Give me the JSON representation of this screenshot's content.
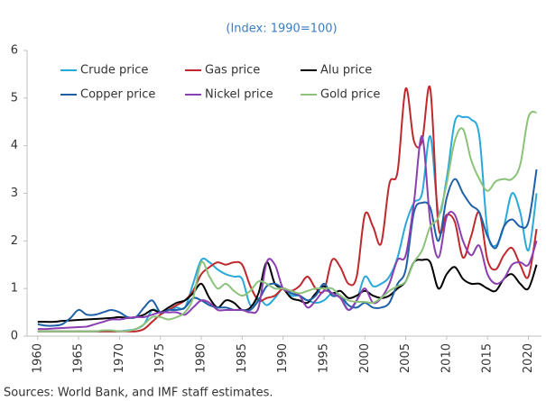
{
  "chart_data": {
    "type": "line",
    "title": "(Index: 1990=100)",
    "source": "Sources: World Bank, and IMF staff estimates.",
    "x": [
      1960,
      1961,
      1962,
      1963,
      1964,
      1965,
      1966,
      1967,
      1968,
      1969,
      1970,
      1971,
      1972,
      1973,
      1974,
      1975,
      1976,
      1977,
      1978,
      1979,
      1980,
      1981,
      1982,
      1983,
      1984,
      1985,
      1986,
      1987,
      1988,
      1989,
      1990,
      1991,
      1992,
      1993,
      1994,
      1995,
      1996,
      1997,
      1998,
      1999,
      2000,
      2001,
      2002,
      2003,
      2004,
      2005,
      2006,
      2007,
      2008,
      2009,
      2010,
      2011,
      2012,
      2013,
      2014,
      2015,
      2016,
      2017,
      2018,
      2019,
      2020,
      2021
    ],
    "xlim": [
      1958.7,
      2021.6
    ],
    "xticks": [
      1960,
      1965,
      1970,
      1975,
      1980,
      1985,
      1990,
      1995,
      2000,
      2005,
      2010,
      2015,
      2020
    ],
    "ylim": [
      0,
      6
    ],
    "yticks": [
      0,
      1,
      2,
      3,
      4,
      5,
      6
    ],
    "series": [
      {
        "name": "Crude price",
        "color": "#29a9da",
        "values": [
          0.1,
          0.1,
          0.1,
          0.1,
          0.1,
          0.1,
          0.1,
          0.1,
          0.1,
          0.1,
          0.1,
          0.12,
          0.15,
          0.25,
          0.55,
          0.5,
          0.55,
          0.6,
          0.6,
          1.1,
          1.6,
          1.55,
          1.4,
          1.3,
          1.25,
          1.2,
          0.65,
          0.8,
          0.65,
          0.8,
          1.0,
          0.85,
          0.85,
          0.75,
          0.7,
          0.75,
          0.9,
          0.85,
          0.55,
          0.75,
          1.25,
          1.05,
          1.1,
          1.25,
          1.65,
          2.35,
          2.8,
          3.0,
          4.2,
          2.6,
          3.3,
          4.5,
          4.6,
          4.55,
          4.2,
          2.2,
          1.9,
          2.3,
          3.0,
          2.6,
          1.8,
          3.0
        ]
      },
      {
        "name": "Gas price",
        "color": "#c0282d",
        "values": [
          0.1,
          0.1,
          0.1,
          0.1,
          0.1,
          0.1,
          0.1,
          0.1,
          0.1,
          0.1,
          0.1,
          0.1,
          0.1,
          0.15,
          0.3,
          0.45,
          0.55,
          0.65,
          0.75,
          0.95,
          1.3,
          1.45,
          1.55,
          1.5,
          1.55,
          1.5,
          1.05,
          0.75,
          0.8,
          0.85,
          1.0,
          0.95,
          1.05,
          1.25,
          1.0,
          0.95,
          1.6,
          1.45,
          1.1,
          1.25,
          2.55,
          2.3,
          1.95,
          3.2,
          3.45,
          5.2,
          4.1,
          4.1,
          5.2,
          2.3,
          2.55,
          2.4,
          1.65,
          2.1,
          2.6,
          1.6,
          1.4,
          1.7,
          1.85,
          1.5,
          1.25,
          2.25
        ]
      },
      {
        "name": "Alu price",
        "color": "#000000",
        "values": [
          0.3,
          0.3,
          0.3,
          0.32,
          0.33,
          0.34,
          0.35,
          0.36,
          0.37,
          0.38,
          0.4,
          0.38,
          0.4,
          0.45,
          0.55,
          0.5,
          0.6,
          0.7,
          0.75,
          0.9,
          1.1,
          0.8,
          0.6,
          0.75,
          0.7,
          0.55,
          0.6,
          0.9,
          1.55,
          1.1,
          1.0,
          0.8,
          0.75,
          0.7,
          0.9,
          1.05,
          0.9,
          0.95,
          0.8,
          0.85,
          0.95,
          0.85,
          0.8,
          0.85,
          1.0,
          1.15,
          1.55,
          1.6,
          1.55,
          1.0,
          1.3,
          1.45,
          1.2,
          1.1,
          1.1,
          1.0,
          0.95,
          1.2,
          1.3,
          1.1,
          1.0,
          1.5
        ]
      },
      {
        "name": "Copper price",
        "color": "#1f5fa6",
        "values": [
          0.25,
          0.22,
          0.22,
          0.25,
          0.38,
          0.55,
          0.45,
          0.45,
          0.5,
          0.55,
          0.5,
          0.4,
          0.4,
          0.6,
          0.75,
          0.5,
          0.55,
          0.55,
          0.6,
          0.8,
          0.75,
          0.65,
          0.6,
          0.6,
          0.55,
          0.55,
          0.55,
          0.75,
          1.05,
          1.1,
          1.0,
          0.9,
          0.85,
          0.75,
          0.85,
          1.1,
          0.85,
          0.85,
          0.65,
          0.6,
          0.7,
          0.6,
          0.6,
          0.7,
          1.1,
          1.4,
          2.6,
          2.8,
          2.7,
          2.0,
          2.9,
          3.3,
          3.0,
          2.75,
          2.6,
          2.1,
          1.85,
          2.3,
          2.45,
          2.3,
          2.4,
          3.5
        ]
      },
      {
        "name": "Nickel price",
        "color": "#8b3fb0",
        "values": [
          0.15,
          0.15,
          0.16,
          0.17,
          0.18,
          0.19,
          0.2,
          0.25,
          0.3,
          0.35,
          0.35,
          0.38,
          0.4,
          0.4,
          0.45,
          0.5,
          0.5,
          0.5,
          0.45,
          0.6,
          0.75,
          0.7,
          0.55,
          0.55,
          0.55,
          0.55,
          0.5,
          0.6,
          1.55,
          1.5,
          1.0,
          0.95,
          0.85,
          0.6,
          0.75,
          0.95,
          0.9,
          0.8,
          0.55,
          0.75,
          1.0,
          0.7,
          0.8,
          1.1,
          1.6,
          1.7,
          2.8,
          4.2,
          2.4,
          1.65,
          2.5,
          2.55,
          2.0,
          1.7,
          1.9,
          1.3,
          1.1,
          1.2,
          1.5,
          1.55,
          1.5,
          2.0
        ]
      },
      {
        "name": "Gold price",
        "color": "#8cc27a",
        "values": [
          0.1,
          0.1,
          0.1,
          0.1,
          0.1,
          0.1,
          0.1,
          0.1,
          0.12,
          0.12,
          0.1,
          0.11,
          0.15,
          0.25,
          0.4,
          0.4,
          0.35,
          0.4,
          0.5,
          0.8,
          1.55,
          1.25,
          1.0,
          1.1,
          0.95,
          0.85,
          0.95,
          1.15,
          1.1,
          1.0,
          1.0,
          0.95,
          0.9,
          0.95,
          1.0,
          1.0,
          1.0,
          0.85,
          0.75,
          0.72,
          0.72,
          0.7,
          0.8,
          0.95,
          1.05,
          1.15,
          1.55,
          1.8,
          2.3,
          2.5,
          3.2,
          4.1,
          4.35,
          3.7,
          3.3,
          3.05,
          3.25,
          3.3,
          3.3,
          3.6,
          4.6,
          4.7
        ]
      }
    ]
  }
}
